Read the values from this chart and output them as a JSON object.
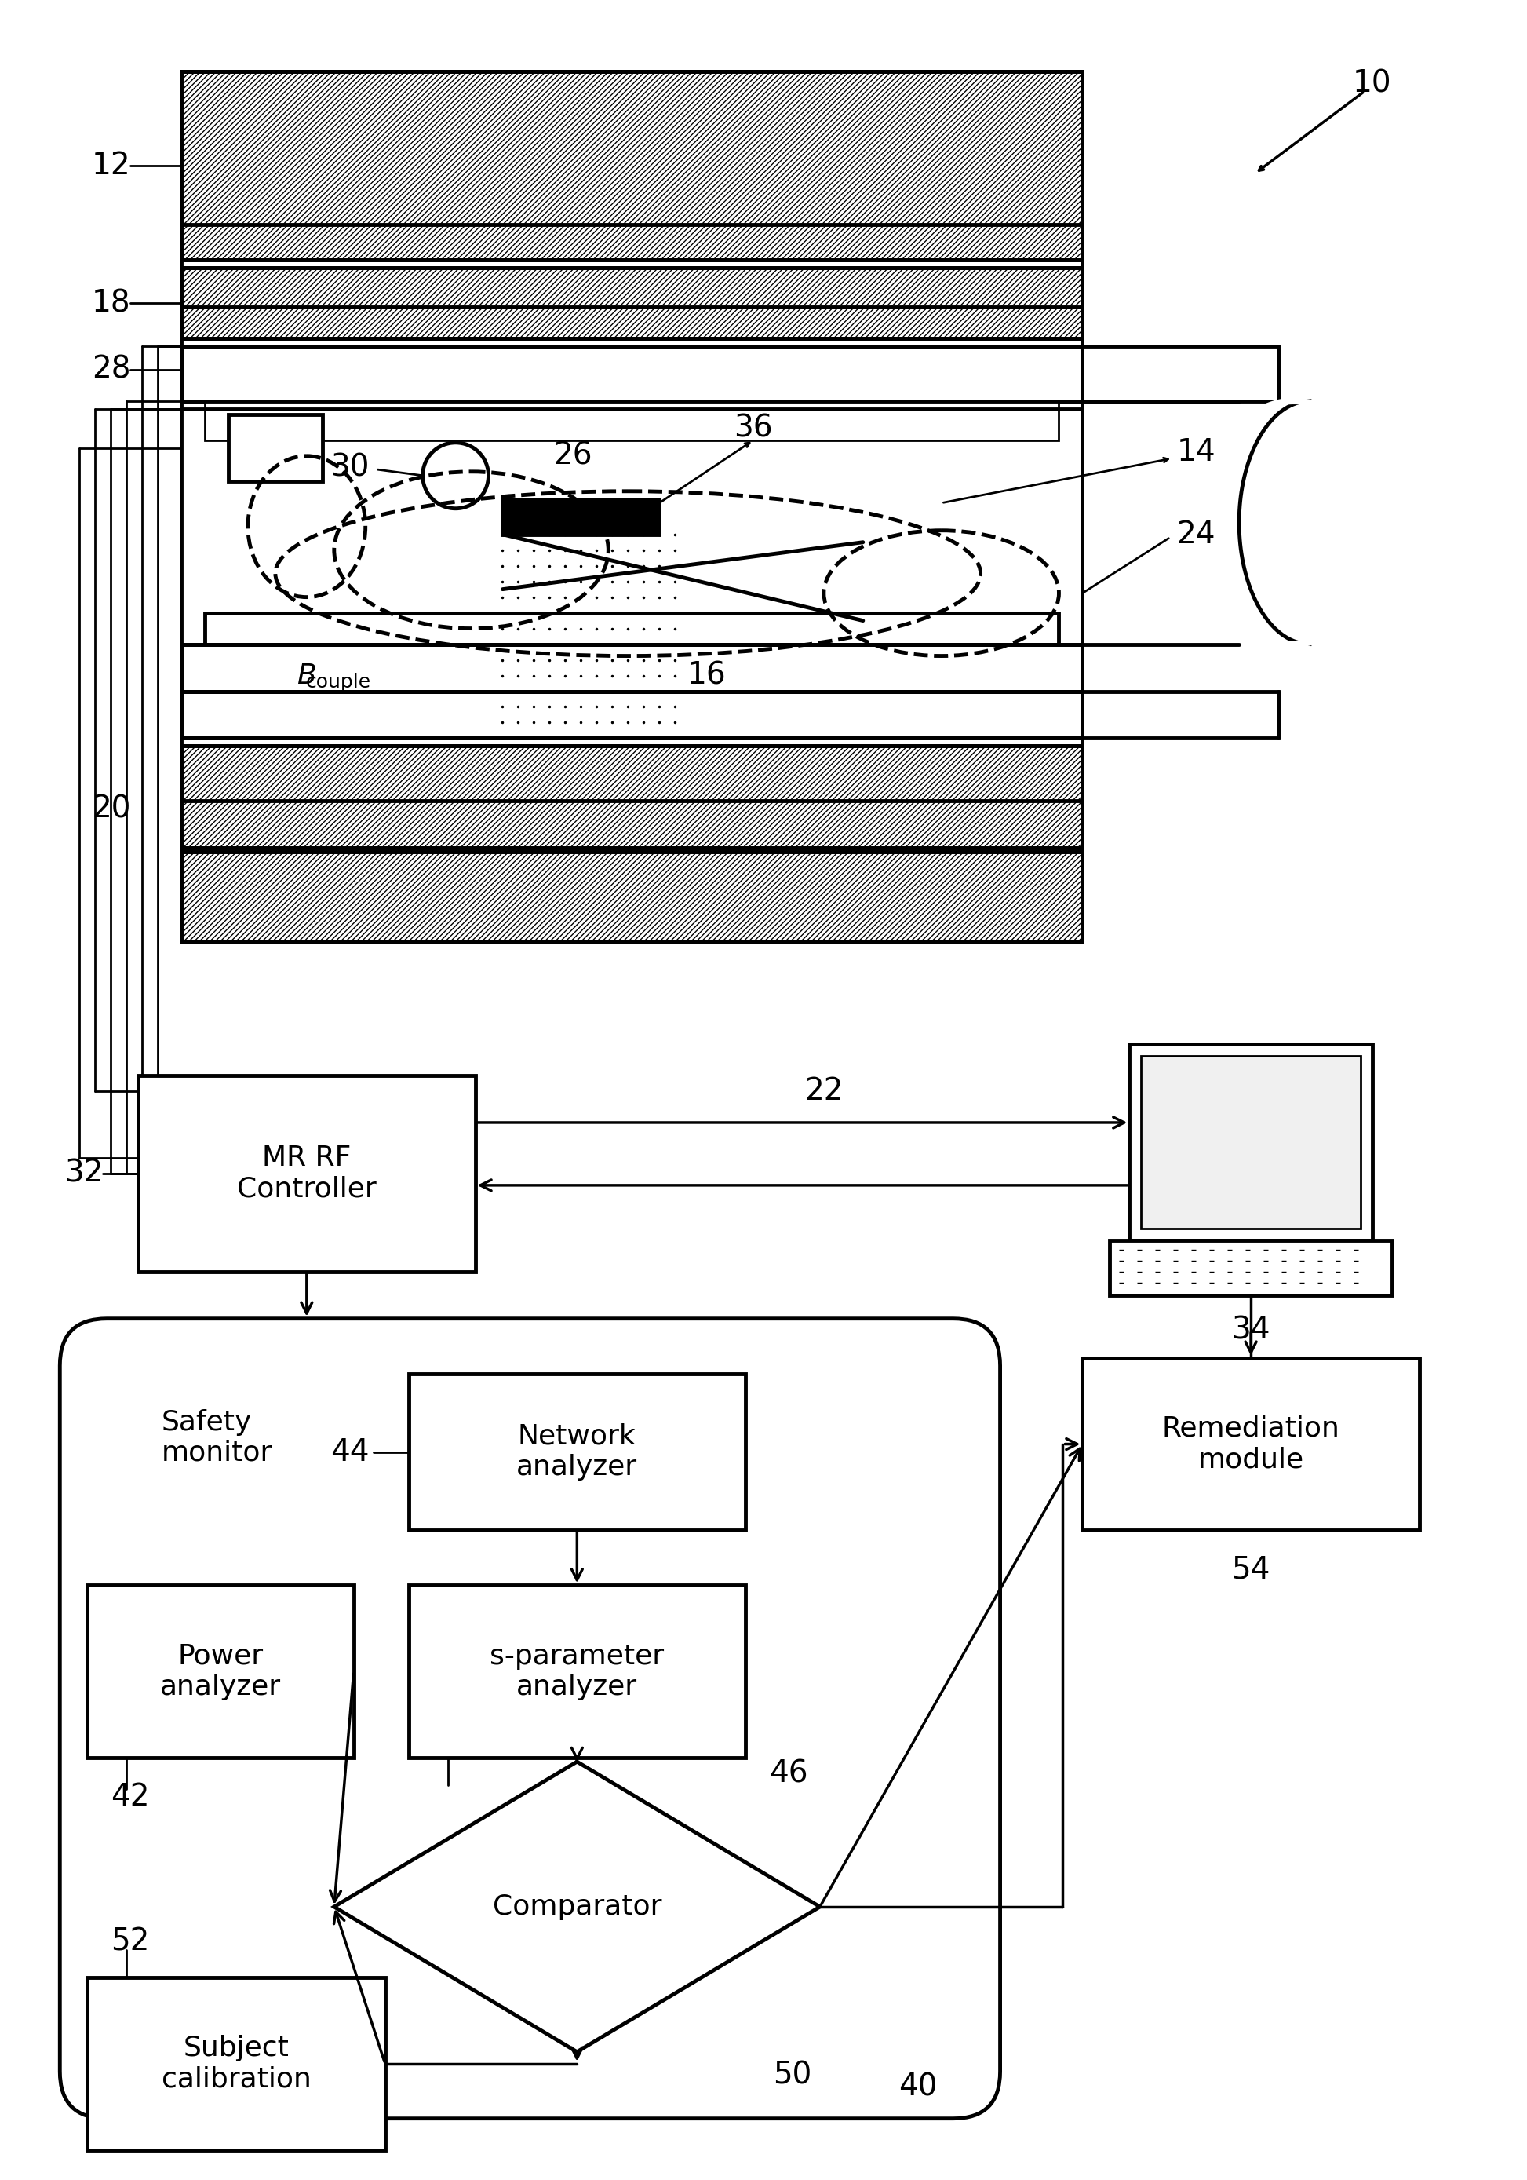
{
  "fig_width": 19.46,
  "fig_height": 27.77,
  "bg_color": "#ffffff",
  "label_10": "10",
  "label_12": "12",
  "label_14": "14",
  "label_16": "16",
  "label_18": "18",
  "label_20": "20",
  "label_22": "22",
  "label_24": "24",
  "label_26": "26",
  "label_28": "28",
  "label_30": "30",
  "label_32": "32",
  "label_34": "34",
  "label_36": "36",
  "label_40": "40",
  "label_42": "42",
  "label_44": "44",
  "label_46": "46",
  "label_50": "50",
  "label_52": "52",
  "label_54": "54",
  "box_mr_rf": "MR RF\nController",
  "box_safety": "Safety\nmonitor",
  "box_network": "Network\nanalyzer",
  "box_power": "Power\nanalyzer",
  "box_sparameter": "s-parameter\nanalyzer",
  "box_comparator": "Comparator",
  "box_subject": "Subject\ncalibration",
  "box_remediation": "Remediation\nmodule",
  "label_bcouple": "B",
  "label_bcouple_sub": "couple"
}
